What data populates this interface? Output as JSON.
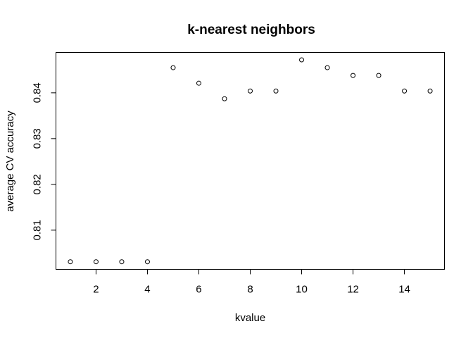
{
  "chart_data": {
    "type": "scatter",
    "title": "k-nearest neighbors",
    "xlabel": "kvalue",
    "ylabel": "average CV accuracy",
    "x": [
      1,
      2,
      3,
      4,
      5,
      6,
      7,
      8,
      9,
      10,
      11,
      12,
      13,
      14,
      15
    ],
    "y": [
      0.8031,
      0.8031,
      0.8031,
      0.8031,
      0.8455,
      0.8421,
      0.8387,
      0.8404,
      0.8404,
      0.8472,
      0.8455,
      0.8438,
      0.8438,
      0.8404,
      0.8404
    ],
    "xlim": [
      0.44,
      15.56
    ],
    "ylim": [
      0.80144,
      0.84882
    ],
    "xticks": [
      2,
      4,
      6,
      8,
      10,
      12,
      14
    ],
    "yticks": [
      0.81,
      0.82,
      0.83,
      0.84
    ],
    "xtick_labels": [
      "2",
      "4",
      "6",
      "8",
      "10",
      "12",
      "14"
    ],
    "ytick_labels": [
      "0.81",
      "0.82",
      "0.83",
      "0.84"
    ],
    "grid": false,
    "legend": false,
    "marker": "open-circle"
  }
}
